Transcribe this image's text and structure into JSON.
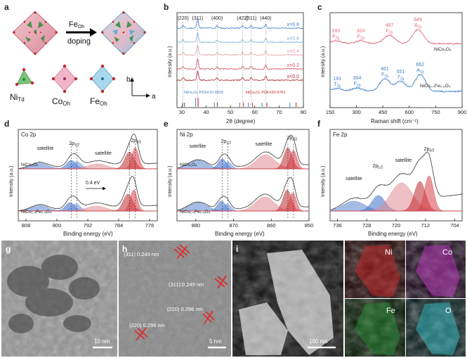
{
  "panels": {
    "a": {
      "letter": "a",
      "arrow_label_1": "Fe",
      "arrow_label_1_sub": "Oh",
      "arrow_label_2": "doping",
      "sites": [
        {
          "main": "Ni",
          "sub": "Td"
        },
        {
          "main": "Co",
          "sub": "Oh"
        },
        {
          "main": "Fe",
          "sub": "Oh"
        }
      ],
      "axis_b": "b",
      "axis_a": "a"
    },
    "b": {
      "letter": "b",
      "ylabel": "Intensity (a.u.)",
      "xlabel": "2θ (degree)",
      "ref1": "NiFe₂O₄ PDF#10-0325",
      "ref2": "NiCo₂O₄ PDF#20-0781"
    },
    "c": {
      "letter": "c",
      "ylabel": "Intensity (a.u.)",
      "xlabel": "Raman shift (cm⁻¹)",
      "curve1": "NiCo₂O₄",
      "curve2": "NiCo₁.₄Fe₀.₆O₄"
    },
    "d": {
      "letter": "d",
      "title": "Co 2p",
      "ylabel": "Intensity (a.u.)",
      "xlabel": "Binding energy (eV)",
      "sample1": "NiCo₂O₄",
      "sample2": "NiCo₁.₄Fe₀.₆O₄",
      "shift": "0.4 eV"
    },
    "e": {
      "letter": "e",
      "title": "Ni 2p",
      "ylabel": "Intensity (a.u.)",
      "xlabel": "Binding energy (eV)",
      "sample1": "NiCo₂O₄",
      "sample2": "NiCo₁.₄Fe₀.₆O₄"
    },
    "f": {
      "letter": "f",
      "title": "Fe 2p",
      "ylabel": "Intensity (a.u.)",
      "xlabel": "Binding energy (eV)"
    },
    "g": {
      "letter": "g",
      "scale": "10 nm"
    },
    "h": {
      "letter": "h",
      "scale": "5 nm",
      "fringes": [
        "(311) 0.249 nm",
        "(311) 0.249 nm",
        "(220) 0.296 nm",
        "(220) 0.296 nm"
      ]
    },
    "i": {
      "letter": "i",
      "scale": "100 nm",
      "maps": [
        "Ni",
        "Co",
        "Fe",
        "O"
      ]
    }
  },
  "colors": {
    "ni_map": "#c0282a",
    "co_map": "#b63ab8",
    "fe_map": "#2f9a3a",
    "o_map": "#39b8c0",
    "pink": "#e06a78",
    "blue": "#3d7fc8"
  },
  "chart_data": [
    {
      "panel": "b",
      "type": "line",
      "title": "",
      "xlabel": "2θ (degree)",
      "ylabel": "Intensity (a.u.)",
      "xlim": [
        28,
        80
      ],
      "x_ticks": [
        30,
        40,
        50,
        60,
        70,
        80
      ],
      "peaks": [
        {
          "x": 30.5,
          "label": "(220)"
        },
        {
          "x": 36.5,
          "label": "(311)"
        },
        {
          "x": 44.5,
          "label": "(400)"
        },
        {
          "x": 55.0,
          "label": "(422)"
        },
        {
          "x": 58.5,
          "label": "(511)"
        },
        {
          "x": 64.5,
          "label": "(440)"
        }
      ],
      "series": [
        {
          "name": "x=0.8",
          "color": "#3d7fc8"
        },
        {
          "name": "x=0.6",
          "color": "#7fb0dd"
        },
        {
          "name": "x=0.4",
          "color": "#e8a0a8"
        },
        {
          "name": "x=0.2",
          "color": "#d0505c"
        },
        {
          "name": "x=0.0",
          "color": "#b02838"
        }
      ]
    },
    {
      "panel": "c",
      "type": "line",
      "title": "",
      "xlabel": "Raman shift (cm⁻¹)",
      "ylabel": "Intensity (a.u.)",
      "xlim": [
        150,
        900
      ],
      "x_ticks": [
        150,
        300,
        450,
        600,
        750,
        900
      ],
      "series": [
        {
          "name": "NiCo₂O₄",
          "color": "#e06a78",
          "peaks": [
            {
              "x": 183,
              "label": "F2g"
            },
            {
              "x": 324,
              "label": "F2g"
            },
            {
              "x": 487,
              "label": "F2g"
            },
            {
              "x": 649,
              "label": "A1g"
            }
          ]
        },
        {
          "name": "NiCo₁.₄Fe₀.₆O₄",
          "color": "#3d7fc8",
          "peaks": [
            {
              "x": 191,
              "label": "T2g"
            },
            {
              "x": 304,
              "label": "F2g"
            },
            {
              "x": 461,
              "label": "F2g"
            },
            {
              "x": 551,
              "label": "T2g"
            },
            {
              "x": 662,
              "label": "A1g"
            }
          ]
        }
      ]
    },
    {
      "panel": "d",
      "type": "line",
      "title": "Co 2p",
      "xlabel": "Binding energy (eV)",
      "ylabel": "Intensity (a.u.)",
      "xlim": [
        810,
        774
      ],
      "x_ticks": [
        808,
        800,
        792,
        784,
        776
      ],
      "annotations": [
        "satellite",
        "2p1/2",
        "satellite",
        "2p3/2",
        "0.4 eV"
      ]
    },
    {
      "panel": "e",
      "type": "line",
      "title": "Ni 2p",
      "xlabel": "Binding energy (eV)",
      "ylabel": "Intensity (a.u.)",
      "xlim": [
        885,
        850
      ],
      "x_ticks": [
        880,
        870,
        860,
        850
      ],
      "annotations": [
        "satellite",
        "2p1/2",
        "satellite",
        "2p3/2"
      ]
    },
    {
      "panel": "f",
      "type": "line",
      "title": "Fe 2p",
      "xlabel": "Binding energy (eV)",
      "ylabel": "Intensity (a.u.)",
      "xlim": [
        738,
        702
      ],
      "x_ticks": [
        736,
        728,
        720,
        712,
        704
      ],
      "annotations": [
        "satellite",
        "2p1/2",
        "satellite",
        "2p3/2"
      ]
    }
  ]
}
